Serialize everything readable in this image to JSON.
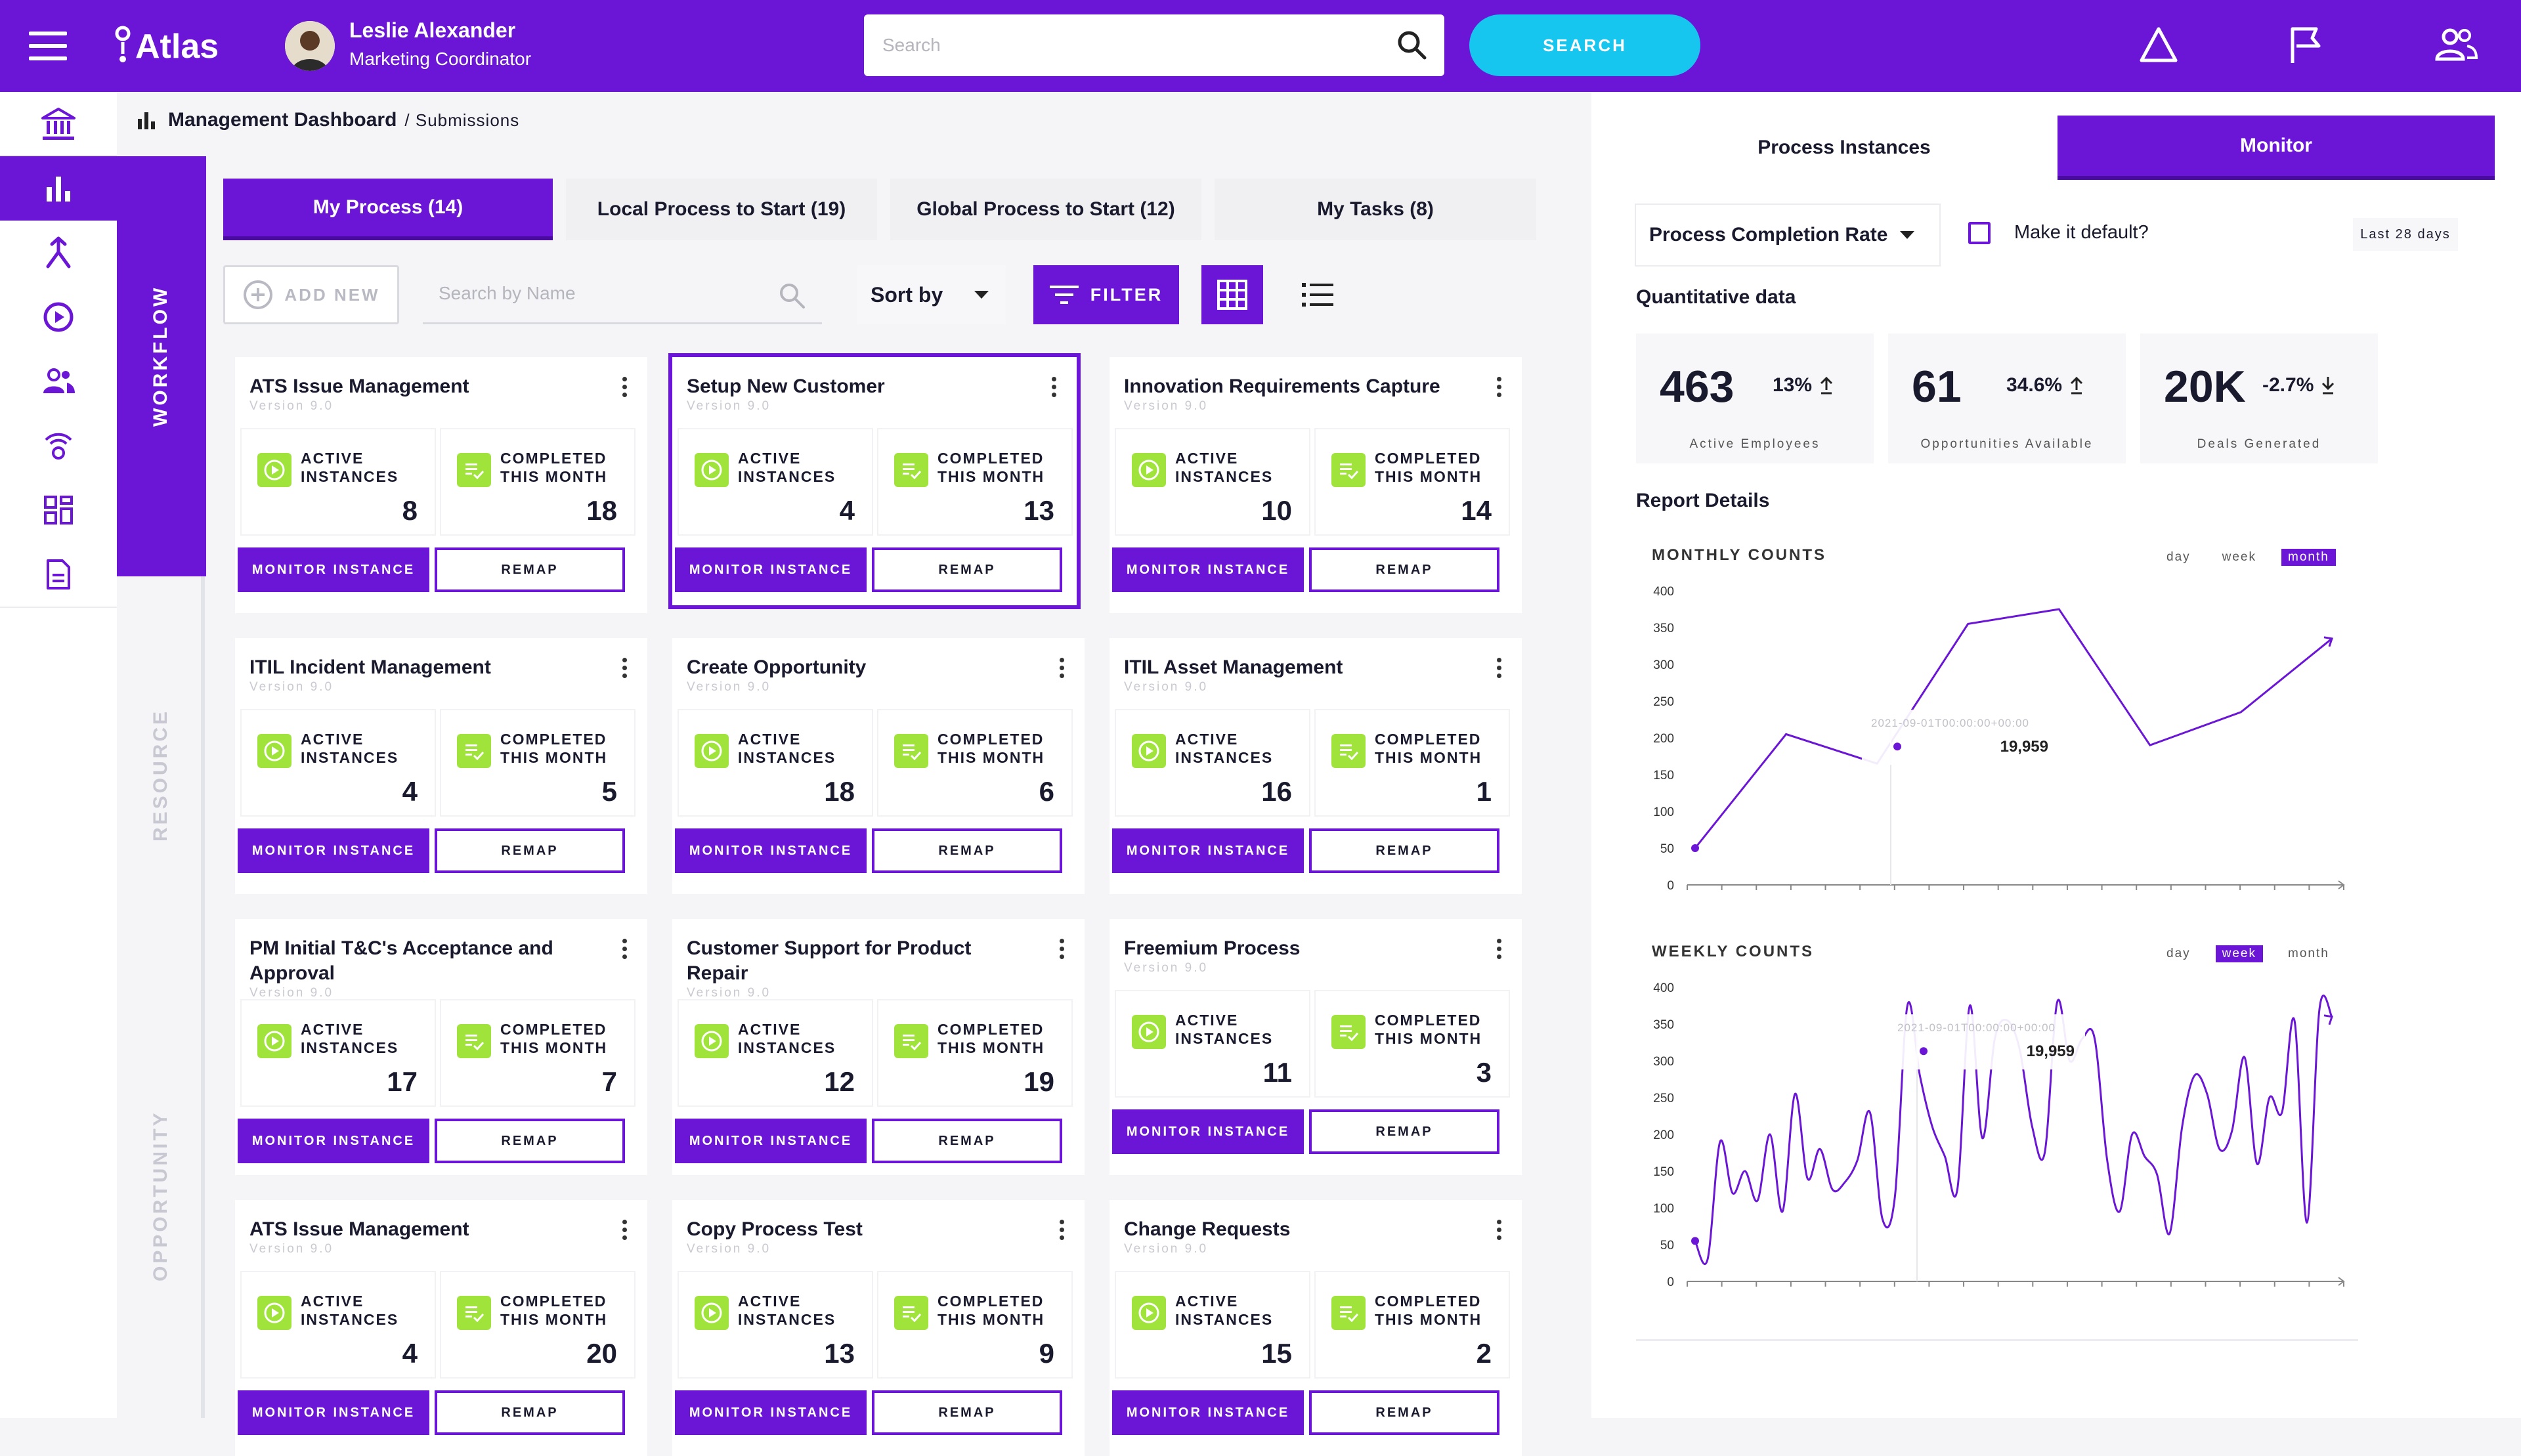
{
  "header": {
    "app_name": "Atlas",
    "user_name": "Leslie Alexander",
    "user_role": "Marketing Coordinator",
    "search_placeholder": "Search",
    "search_button": "SEARCH"
  },
  "sidebar": {
    "icons": [
      "bank-icon",
      "bar-chart-icon",
      "merge-icon",
      "play-circle-icon",
      "users-icon",
      "broadcast-icon",
      "dashboard-grid-icon",
      "document-icon"
    ],
    "sections": [
      "WORKFLOW",
      "RESOURCE",
      "OPPORTUNITY"
    ]
  },
  "breadcrumb": {
    "title": "Management Dashboard",
    "sub": "/ Submissions"
  },
  "tabs": [
    {
      "label": "My Process (14)"
    },
    {
      "label": "Local Process to Start (19)"
    },
    {
      "label": "Global Process to Start (12)"
    },
    {
      "label": "My Tasks (8)"
    }
  ],
  "toolbar": {
    "add_label": "ADD NEW",
    "search_placeholder": "Search by Name",
    "sort_label": "Sort by",
    "filter_label": "FILTER"
  },
  "card_labels": {
    "active": [
      "ACTIVE",
      "INSTANCES"
    ],
    "completed": [
      "COMPLETED",
      "THIS MONTH"
    ],
    "monitor": "MONITOR INSTANCE",
    "remap": "REMAP"
  },
  "cards": [
    {
      "title": "ATS Issue Management",
      "version": "Version 9.0",
      "active": "8",
      "completed": "18"
    },
    {
      "title": "Setup New Customer",
      "version": "Version 9.0",
      "active": "4",
      "completed": "13"
    },
    {
      "title": "Innovation Requirements Capture",
      "version": "Version 9.0",
      "active": "10",
      "completed": "14"
    },
    {
      "title": "ITIL Incident Management",
      "version": "Version 9.0",
      "active": "4",
      "completed": "5"
    },
    {
      "title": "Create Opportunity",
      "version": "Version 9.0",
      "active": "18",
      "completed": "6"
    },
    {
      "title": "ITIL Asset Management",
      "version": "Version 9.0",
      "active": "16",
      "completed": "1"
    },
    {
      "title": "PM Initial T&C's Acceptance and Approval",
      "version": "Version 9.0",
      "active": "17",
      "completed": "7"
    },
    {
      "title": "Customer Support for Product Repair",
      "version": "Version 9.0",
      "active": "12",
      "completed": "19"
    },
    {
      "title": "Freemium Process",
      "version": "Version 9.0",
      "active": "11",
      "completed": "3"
    },
    {
      "title": "ATS Issue Management",
      "version": "Version 9.0",
      "active": "4",
      "completed": "20"
    },
    {
      "title": "Copy Process Test",
      "version": "Version 9.0",
      "active": "13",
      "completed": "9"
    },
    {
      "title": "Change Requests",
      "version": "Version 9.0",
      "active": "15",
      "completed": "2"
    }
  ],
  "right": {
    "tabs": [
      "Process Instances",
      "Monitor"
    ],
    "select_value": "Process Completion Rate",
    "default_label": "Make it default?",
    "period": "Last 28 days",
    "quant_title": "Quantitative data",
    "report_title": "Report Details",
    "kpis": [
      {
        "value": "463",
        "pct": "13%",
        "dir": "up",
        "label": "Active Employees"
      },
      {
        "value": "61",
        "pct": "34.6%",
        "dir": "up",
        "label": "Opportunities Available"
      },
      {
        "value": "20K",
        "pct": "-2.7%",
        "dir": "down",
        "label": "Deals Generated"
      }
    ]
  },
  "chart_data": [
    {
      "type": "line",
      "title": "MONTHLY COUNTS",
      "toggle": [
        "day",
        "week",
        "month"
      ],
      "toggle_selected": "month",
      "yticks": [
        "400",
        "350",
        "300",
        "250",
        "200",
        "150",
        "100",
        "50",
        "0"
      ],
      "ylim": [
        0,
        400
      ],
      "y": [
        50,
        205,
        165,
        355,
        375,
        190,
        235,
        335
      ],
      "tooltip": {
        "label": "2021-09-01T00:00:00+00:00",
        "value": "19,959"
      }
    },
    {
      "type": "line",
      "title": "WEEKLY COUNTS",
      "toggle": [
        "day",
        "week",
        "month"
      ],
      "toggle_selected": "week",
      "yticks": [
        "400",
        "350",
        "300",
        "250",
        "200",
        "150",
        "100",
        "50",
        "0"
      ],
      "ylim": [
        0,
        400
      ],
      "y": [
        55,
        30,
        190,
        120,
        150,
        110,
        200,
        95,
        255,
        140,
        180,
        125,
        135,
        165,
        230,
        85,
        115,
        375,
        280,
        210,
        170,
        125,
        375,
        195,
        330,
        355,
        315,
        210,
        175,
        380,
        300,
        330,
        330,
        165,
        95,
        200,
        170,
        145,
        65,
        210,
        280,
        255,
        180,
        205,
        305,
        160,
        250,
        230,
        355,
        80,
        370,
        360
      ],
      "tooltip": {
        "label": "2021-09-01T00:00:00+00:00",
        "value": "19,959"
      }
    }
  ]
}
